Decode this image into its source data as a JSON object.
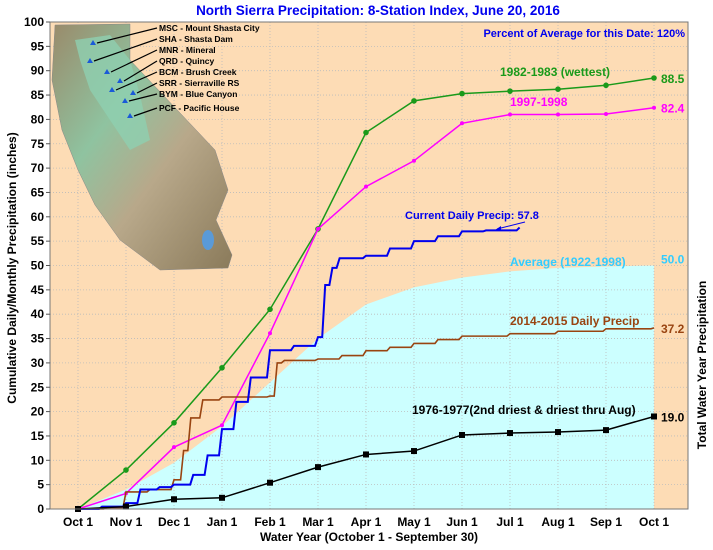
{
  "chart_data": {
    "type": "line",
    "title": "North Sierra Precipitation: 8-Station Index, June 20, 2016",
    "subtitle": "Percent of Average for this Date: 120%",
    "xlabel": "Water Year (October 1 - September 30)",
    "ylabel": "Cumulative Daily/Monthly Precipitation (inches)",
    "ylabel_right": "Total Water Year Precipitation",
    "ylim": [
      0,
      100
    ],
    "yticks": [
      0,
      5,
      10,
      15,
      20,
      25,
      30,
      35,
      40,
      45,
      50,
      55,
      60,
      65,
      70,
      75,
      80,
      85,
      90,
      95,
      100
    ],
    "x_unit": "months since Oct 1",
    "xticks": [
      "Oct 1",
      "Nov 1",
      "Dec 1",
      "Jan 1",
      "Feb 1",
      "Mar 1",
      "Apr 1",
      "May 1",
      "Jun 1",
      "Jul 1",
      "Aug 1",
      "Sep 1",
      "Oct 1"
    ],
    "grid": true,
    "series": [
      {
        "name": "Average (1922-1998)",
        "kind": "area",
        "color": "#ccffff",
        "label_color": "#33ccff",
        "end_label": "50.0",
        "x": [
          0,
          1,
          2,
          3,
          4,
          5,
          6,
          7,
          8,
          9,
          10,
          11,
          12
        ],
        "y": [
          0,
          4,
          9.5,
          17,
          26,
          35,
          42,
          45.5,
          47.5,
          48.8,
          49.5,
          49.8,
          50
        ]
      },
      {
        "name": "1982-1983 (wettest)",
        "kind": "line",
        "color": "#1a9a1a",
        "end_label": "88.5",
        "x": [
          0,
          1,
          2,
          3,
          4,
          5,
          6,
          7,
          8,
          9,
          10,
          11,
          12
        ],
        "y": [
          0,
          8,
          17.7,
          29,
          41,
          57.5,
          77.3,
          83.8,
          85.3,
          85.8,
          86.2,
          87,
          88.5
        ]
      },
      {
        "name": "1997-1998",
        "kind": "line",
        "color": "#ff00ff",
        "end_label": "82.4",
        "x": [
          0,
          1,
          2,
          3,
          4,
          5,
          6,
          7,
          8,
          9,
          10,
          11,
          12
        ],
        "y": [
          0,
          3.2,
          12.7,
          17.2,
          36.1,
          57.5,
          66.2,
          71.5,
          79.2,
          81,
          81,
          81.1,
          82.4
        ]
      },
      {
        "name": "2014-2015 Daily Precip",
        "kind": "step",
        "color": "#994411",
        "end_label": "37.2",
        "x": [
          0,
          0.6,
          1,
          1.5,
          2,
          2.2,
          2.35,
          2.6,
          3,
          4,
          4.15,
          4.3,
          5,
          5.5,
          6,
          6.5,
          7,
          7.5,
          8,
          9,
          10,
          11,
          12
        ],
        "y": [
          0,
          0.3,
          3.5,
          4,
          6,
          12,
          18.7,
          22.4,
          23,
          23.2,
          30,
          30.5,
          30.8,
          31.5,
          32.5,
          33.2,
          34,
          34.8,
          35.5,
          36,
          36.5,
          37,
          37.2
        ]
      },
      {
        "name": "Current Daily Precip: 57.8",
        "kind": "step",
        "color": "#0000ee",
        "end_label": "",
        "x": [
          0,
          0.5,
          1,
          1.3,
          1.7,
          2,
          2.4,
          2.7,
          3,
          3.3,
          3.6,
          4,
          4.5,
          5,
          5.15,
          5.3,
          5.45,
          6,
          6.5,
          7,
          7.5,
          8,
          8.5,
          9.2
        ],
        "y": [
          0,
          0.5,
          1.2,
          4,
          4.5,
          5,
          7,
          11,
          16.4,
          22,
          27,
          32.6,
          33.5,
          35.3,
          46,
          49.5,
          51.5,
          52,
          53.5,
          55,
          56,
          57,
          57.2,
          57.8
        ]
      },
      {
        "name": "1976-1977(2nd driest & driest thru Aug)",
        "kind": "line",
        "color": "#000000",
        "end_label": "19.0",
        "x": [
          0,
          1,
          2,
          3,
          4,
          5,
          6,
          7,
          8,
          9,
          10,
          11,
          12
        ],
        "y": [
          0,
          0.5,
          2,
          2.3,
          5.4,
          8.6,
          11.2,
          11.9,
          15.2,
          15.6,
          15.8,
          16.2,
          19.0
        ]
      }
    ]
  },
  "map": {
    "stations": [
      "MSC - Mount Shasta City",
      "SHA - Shasta Dam",
      "MNR - Mineral",
      "QRD - Quincy",
      "BCM - Brush Creek",
      "SRR - Sierraville RS",
      "BYM - Blue Canyon",
      "PCF - Pacific House"
    ]
  }
}
